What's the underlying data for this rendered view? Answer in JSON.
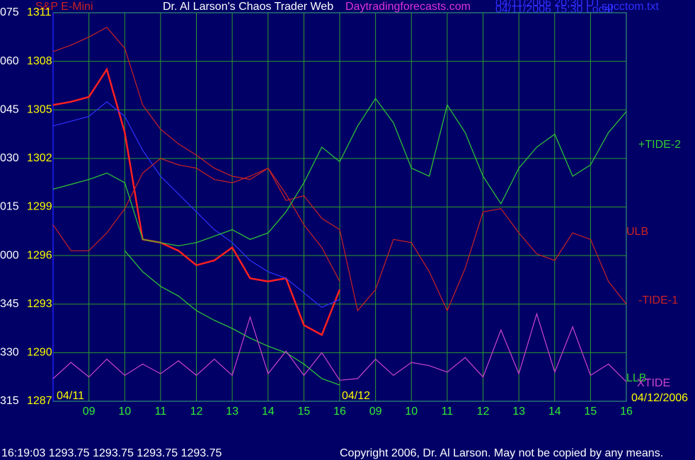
{
  "chart_data": {
    "type": "line",
    "symbol": "S&P E-Mini",
    "title": "Dr. Al Larson's Chaos Trader Web",
    "website": "Daytradingforecasts.com",
    "timestamps": [
      "04/11/2006 20:30 UT",
      "04/11/2006 15:30 Local"
    ],
    "file": "spcctom.txt",
    "date_labels": [
      "04/11",
      "04/12",
      "04/12/2006"
    ],
    "angle_labels": [
      "315",
      "330",
      "345",
      "000",
      "015",
      "030",
      "045",
      "060",
      "075"
    ],
    "status": "16:19:03  1293.75 1293.75 1293.75 1293.75",
    "copyright": "Copyright 2006, Dr. Al Larson. May not be copied by any means.",
    "grid": true,
    "xlim": [
      0,
      16
    ],
    "xticks": [
      {
        "value": 1,
        "label": "09"
      },
      {
        "value": 2,
        "label": "10"
      },
      {
        "value": 3,
        "label": "11"
      },
      {
        "value": 4,
        "label": "12"
      },
      {
        "value": 5,
        "label": "13"
      },
      {
        "value": 6,
        "label": "14"
      },
      {
        "value": 7,
        "label": "15"
      },
      {
        "value": 8,
        "label": "16"
      },
      {
        "value": 9,
        "label": "09"
      },
      {
        "value": 10,
        "label": "10"
      },
      {
        "value": 11,
        "label": "11"
      },
      {
        "value": 12,
        "label": "12"
      },
      {
        "value": 13,
        "label": "13"
      },
      {
        "value": 14,
        "label": "14"
      },
      {
        "value": 15,
        "label": "15"
      },
      {
        "value": 16,
        "label": "16"
      }
    ],
    "ylim": [
      1287,
      1311
    ],
    "yticks": [
      1287,
      1290,
      1293,
      1296,
      1299,
      1302,
      1305,
      1308,
      1311
    ],
    "x": [
      0,
      0.5,
      1,
      1.5,
      2,
      2.5,
      3,
      3.5,
      4,
      4.5,
      5,
      5.5,
      6,
      6.5,
      7,
      7.5,
      8,
      8.5,
      9,
      9.5,
      10,
      10.5,
      11,
      11.5,
      12,
      12.5,
      13,
      13.5,
      14,
      14.5,
      15,
      15.5,
      16
    ],
    "series": [
      {
        "color": "#ff2020",
        "values": [
          1305.3,
          1305.5,
          1305.8,
          1307.5,
          1303.6,
          1297,
          1296.8,
          1296.3,
          1295.4,
          1295.7,
          1296.5,
          1294.6,
          1294.4,
          1294.6,
          1291.7,
          1291.1,
          1293.9,
          null,
          null,
          null,
          null,
          null,
          null,
          null,
          null,
          null,
          null,
          null,
          null,
          null,
          null,
          null,
          null
        ]
      },
      {
        "color": "#3030ff",
        "values": [
          1304,
          1304.3,
          1304.6,
          1305.5,
          1304.6,
          1302.5,
          1300.9,
          1299.8,
          1298.7,
          1297.6,
          1296.8,
          1295.7,
          1295,
          1294.6,
          1293.7,
          1292.8,
          1293.3,
          null,
          null,
          null,
          null,
          null,
          null,
          null,
          null,
          null,
          null,
          null,
          null,
          null,
          null,
          null,
          null
        ]
      },
      {
        "name": "ULB",
        "color": "#cc2222",
        "values": [
          1308.6,
          1309,
          1309.5,
          1310.1,
          1308.8,
          1305.3,
          1303.8,
          1302.9,
          1302.2,
          1301.4,
          1300.9,
          1300.7,
          1301.4,
          1299.8,
          1297.9,
          1296.5,
          1294.4,
          null,
          null,
          null,
          null,
          null,
          null,
          null,
          null,
          null,
          null,
          null,
          null,
          null,
          null,
          null,
          null
        ]
      },
      {
        "name": "-TIDE-1",
        "color": "#cc2222",
        "values": [
          1297.9,
          1296.3,
          1296.3,
          1297.4,
          1298.9,
          1301.1,
          1302,
          1301.6,
          1301.4,
          1300.7,
          1300.5,
          1300.9,
          1301.4,
          1299.4,
          1299.7,
          1298.3,
          1297.6,
          1292.6,
          1293.9,
          1297,
          1296.8,
          1295,
          1292.6,
          1295.2,
          1298.7,
          1298.9,
          1297.4,
          1296.1,
          1295.7,
          1297.4,
          1297,
          1294.4,
          1293
        ]
      },
      {
        "name": "+TIDE-2",
        "color": "#33cc33",
        "values": [
          1300.1,
          1300.4,
          1300.7,
          1301.1,
          1300.5,
          1297,
          1296.8,
          1296.6,
          1296.8,
          1297.2,
          1297.6,
          1297,
          1297.4,
          1298.7,
          1300.5,
          1302.7,
          1301.8,
          1304,
          1305.7,
          1304.2,
          1301.4,
          1300.9,
          1305.3,
          1303.6,
          1300.9,
          1299.2,
          1301.4,
          1302.7,
          1303.5,
          1300.9,
          1301.6,
          1303.6,
          1304.9
        ]
      },
      {
        "name": "LLB",
        "color": "#33cc33",
        "values": [
          null,
          null,
          null,
          null,
          1296.3,
          1295,
          1294.1,
          1293.5,
          1292.6,
          1292,
          1291.5,
          1290.9,
          1290.4,
          1290,
          1289.3,
          1288.4,
          1288,
          null,
          null,
          null,
          null,
          null,
          null,
          null,
          null,
          null,
          null,
          null,
          null,
          null,
          null,
          null,
          null
        ]
      },
      {
        "name": "XTIDE",
        "color": "#cc44cc",
        "values": [
          1288.4,
          1289.4,
          1288.5,
          1289.6,
          1288.6,
          1289.3,
          1288.7,
          1289.5,
          1288.6,
          1289.6,
          1288.6,
          1292.2,
          1288.7,
          1290.1,
          1288.6,
          1290,
          1288.3,
          1288.4,
          1289.6,
          1288.6,
          1289.4,
          1289.2,
          1288.8,
          1289.7,
          1288.5,
          1291.4,
          1288.7,
          1292.4,
          1288.8,
          1291.6,
          1288.6,
          1289.3,
          1288.2
        ]
      }
    ]
  }
}
